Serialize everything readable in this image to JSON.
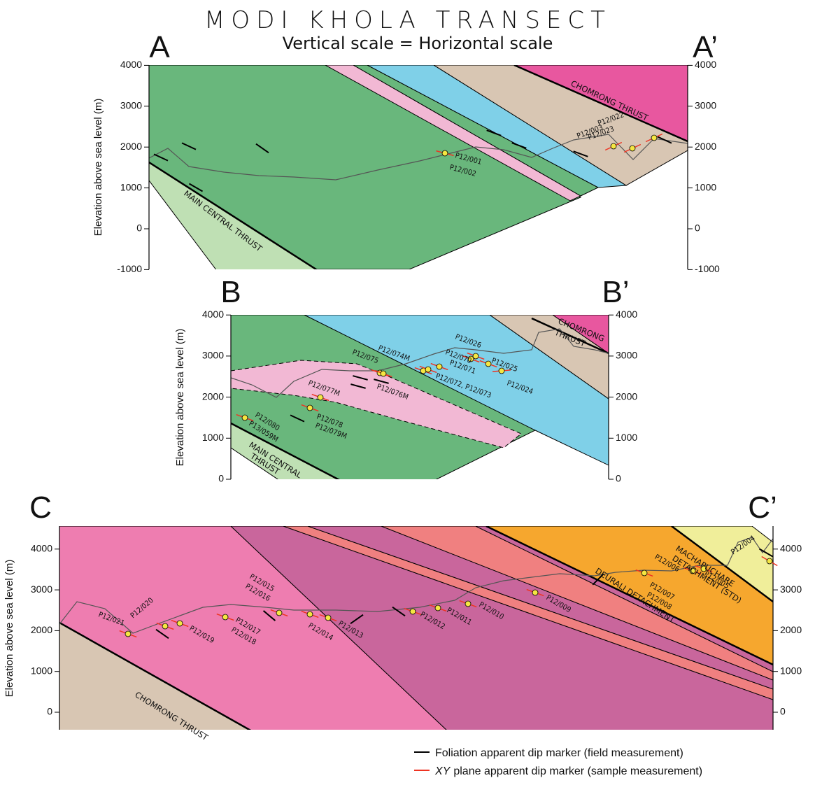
{
  "title": "MODI KHOLA TRANSECT",
  "subtitle": "Vertical scale = Horizontal scale",
  "sections": [
    {
      "left_label": "A",
      "right_label": "A’",
      "y_label": "Elevation above sea level (m)",
      "ticks": [
        "4000",
        "3000",
        "2000",
        "1000",
        "0",
        "-1000"
      ],
      "faults": [
        "CHOMRONG THRUST",
        "MAIN CENTRAL THRUST"
      ],
      "samples": [
        "P12/001",
        "P12/002",
        "P12/003",
        "P12/022",
        "P12/023"
      ]
    },
    {
      "left_label": "B",
      "right_label": "B’",
      "y_label": "Elevation above sea level (m)",
      "ticks": [
        "4000",
        "3000",
        "2000",
        "1000",
        "0"
      ],
      "faults": [
        "CHOMRONG",
        "THRUST",
        "MAIN CENTRAL",
        "THRUST"
      ],
      "samples": [
        "P12/026",
        "P12/074M",
        "P12/075",
        "P12/070",
        "P12/071",
        "P12/025",
        "P12/072, P12/073",
        "P12/024",
        "P12/076M",
        "P12/077M",
        "P12/078",
        "P12/079M",
        "P12/080",
        "P13/059M"
      ]
    },
    {
      "left_label": "C",
      "right_label": "C’",
      "y_label": "Elevation above sea level (m)",
      "ticks": [
        "4000",
        "3000",
        "2000",
        "1000",
        "0"
      ],
      "faults": [
        "CHOMRONG THRUST",
        "DEURALI DETACHMENT",
        "MACHAPUCHARE",
        "DETACHMENT (STD)"
      ],
      "samples": [
        "P12/021",
        "P12/020",
        "P12/019",
        "P12/015",
        "P12/016",
        "P12/017",
        "P12/018",
        "P12/014",
        "P12/013",
        "P12/012",
        "P12/011",
        "P12/010",
        "P12/009",
        "P12/007",
        "P12/008",
        "P12/006",
        "P12/005",
        "P12/004"
      ]
    }
  ],
  "legend": [
    {
      "text": "Foliation apparent dip marker (field measurement)"
    },
    {
      "italic": "XY",
      "text": "plane apparent dip marker (sample measurement)"
    }
  ]
}
